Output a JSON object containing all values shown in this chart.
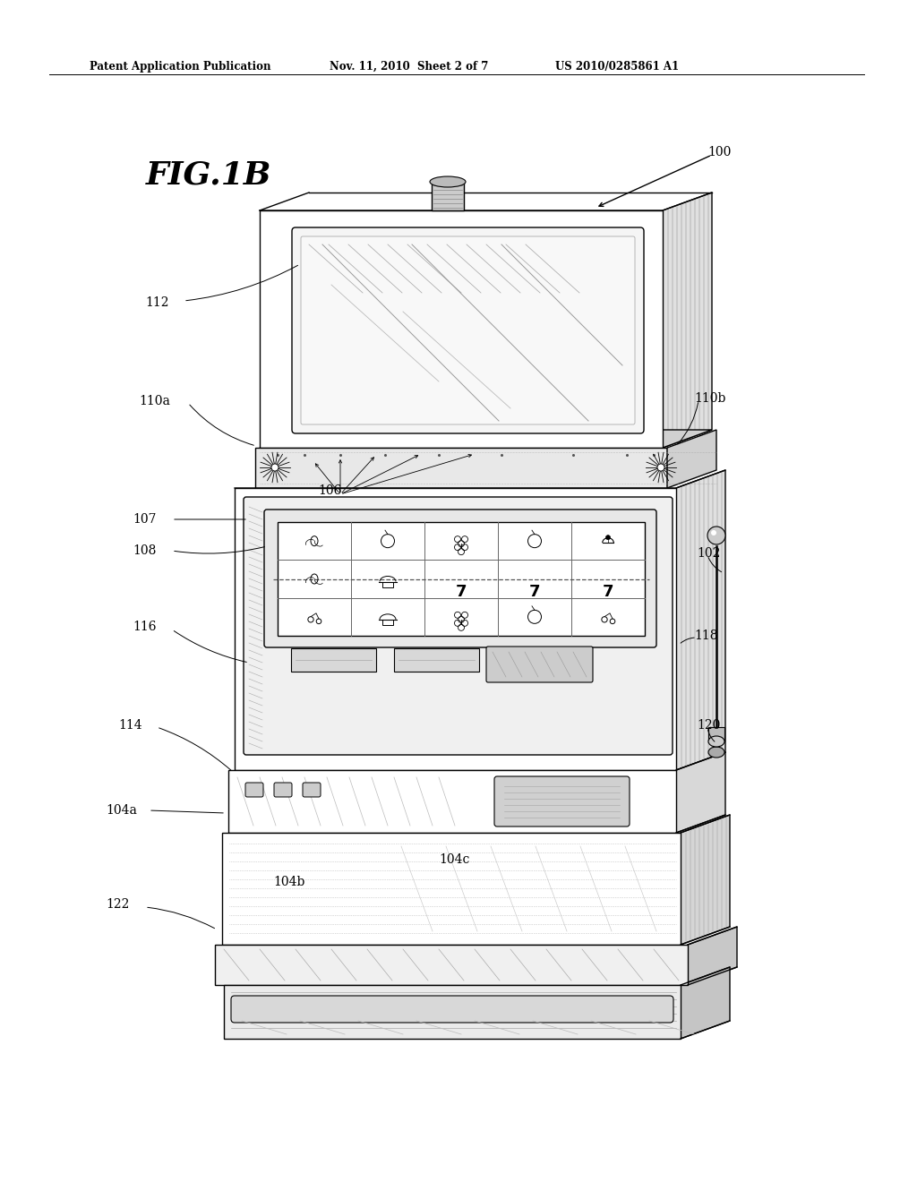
{
  "title_left": "Patent Application Publication",
  "title_center": "Nov. 11, 2010  Sheet 2 of 7",
  "title_right": "US 2010/0285861 A1",
  "fig_label": "FIG.1B",
  "ref_100": "100",
  "ref_102": "102",
  "ref_104a": "104a",
  "ref_104b": "104b",
  "ref_104c": "104c",
  "ref_106": "106",
  "ref_107": "107",
  "ref_108": "108",
  "ref_110a": "110a",
  "ref_110b": "110b",
  "ref_112": "112",
  "ref_114": "114",
  "ref_116": "116",
  "ref_118": "118",
  "ref_120": "120",
  "ref_122": "122",
  "bg_color": "#ffffff",
  "line_color": "#000000"
}
